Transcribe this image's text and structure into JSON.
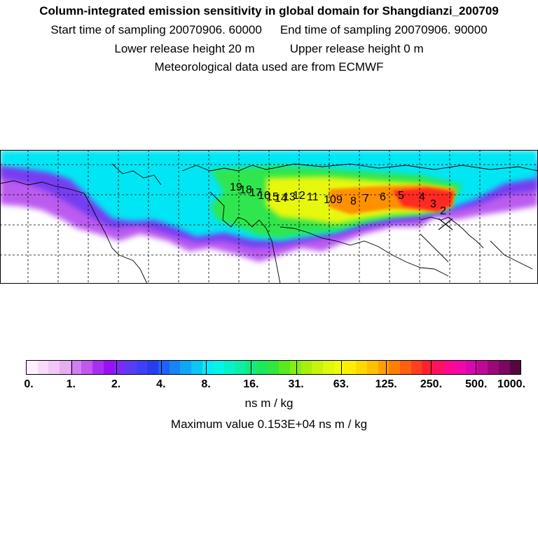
{
  "header": {
    "title": "Column-integrated emission sensitivity in global domain for Shangdianzi_200709",
    "start_label": "Start time of sampling 20070906. 60000",
    "end_label": "End time of sampling 20070906. 90000",
    "lower_label": "Lower release height   20 m",
    "upper_label": "Upper release height    0 m",
    "met_label": "Meteorological data used are from ECMWF"
  },
  "map": {
    "station_marker": "x-marker-icon",
    "trajectory_labels": [
      "19",
      "18",
      "17",
      "16",
      "15",
      "14",
      "13",
      "12",
      "11",
      "10",
      "9",
      "8",
      "7",
      "6",
      "5",
      "4",
      "3",
      "2"
    ]
  },
  "legend": {
    "tick_labels": [
      "0.",
      "1.",
      "2.",
      "4.",
      "8.",
      "16.",
      "31.",
      "63.",
      "125.",
      "250.",
      "500.",
      "1000."
    ],
    "units": "ns m / kg",
    "max_value": "Maximum value  0.153E+04 ns m / kg",
    "colors": [
      "#fff0ff",
      "#f8dcfa",
      "#f0c8f6",
      "#e5aef1",
      "#d080ee",
      "#be58ee",
      "#aa2ef0",
      "#9a10f4",
      "#7a2cf2",
      "#5a3cf4",
      "#3c40f6",
      "#2a3cf2",
      "#1e62f6",
      "#1684f6",
      "#10a6f6",
      "#0cc6f4",
      "#06eafa",
      "#04f4e6",
      "#08f2c6",
      "#0eeea6",
      "#14ea80",
      "#1ee85a",
      "#32e63c",
      "#58ea1e",
      "#84ee10",
      "#a8f00c",
      "#c6f40c",
      "#e0f80c",
      "#f4f80a",
      "#fff000",
      "#ffd800",
      "#ffc000",
      "#ffa000",
      "#ff8000",
      "#ff6010",
      "#ff4020",
      "#ff2030",
      "#ff1060",
      "#ff0890",
      "#f008a8",
      "#d808b0",
      "#c00898",
      "#9c0878",
      "#7a0860",
      "#540840"
    ]
  }
}
